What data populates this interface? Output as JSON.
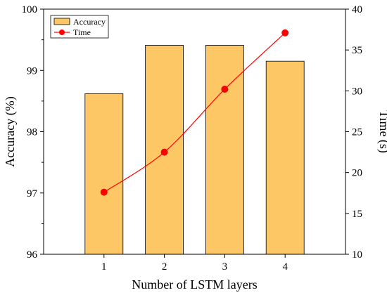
{
  "chart_data": {
    "type": "bar",
    "xlabel": "Number of LSTM layers",
    "categories": [
      "1",
      "2",
      "3",
      "4"
    ],
    "series": [
      {
        "name": "Accuracy",
        "type": "bar",
        "axis": "left",
        "color": "#FDC766",
        "values": [
          98.62,
          99.41,
          99.41,
          99.15
        ]
      },
      {
        "name": "Time",
        "type": "line",
        "axis": "right",
        "color": "#FF0000",
        "values": [
          17.6,
          22.5,
          30.2,
          37.1
        ]
      }
    ],
    "ylabel": "Accuracy (%)",
    "ylim": [
      96,
      100
    ],
    "yticks": [
      "96",
      "97",
      "98",
      "99",
      "100"
    ],
    "y2label": "Time (s)",
    "y2lim": [
      10,
      40
    ],
    "y2ticks": [
      "10",
      "15",
      "20",
      "25",
      "30",
      "35",
      "40"
    ],
    "legend": {
      "placement": "top-left",
      "entries": [
        "Accuracy",
        "Time"
      ]
    },
    "grid": false
  }
}
